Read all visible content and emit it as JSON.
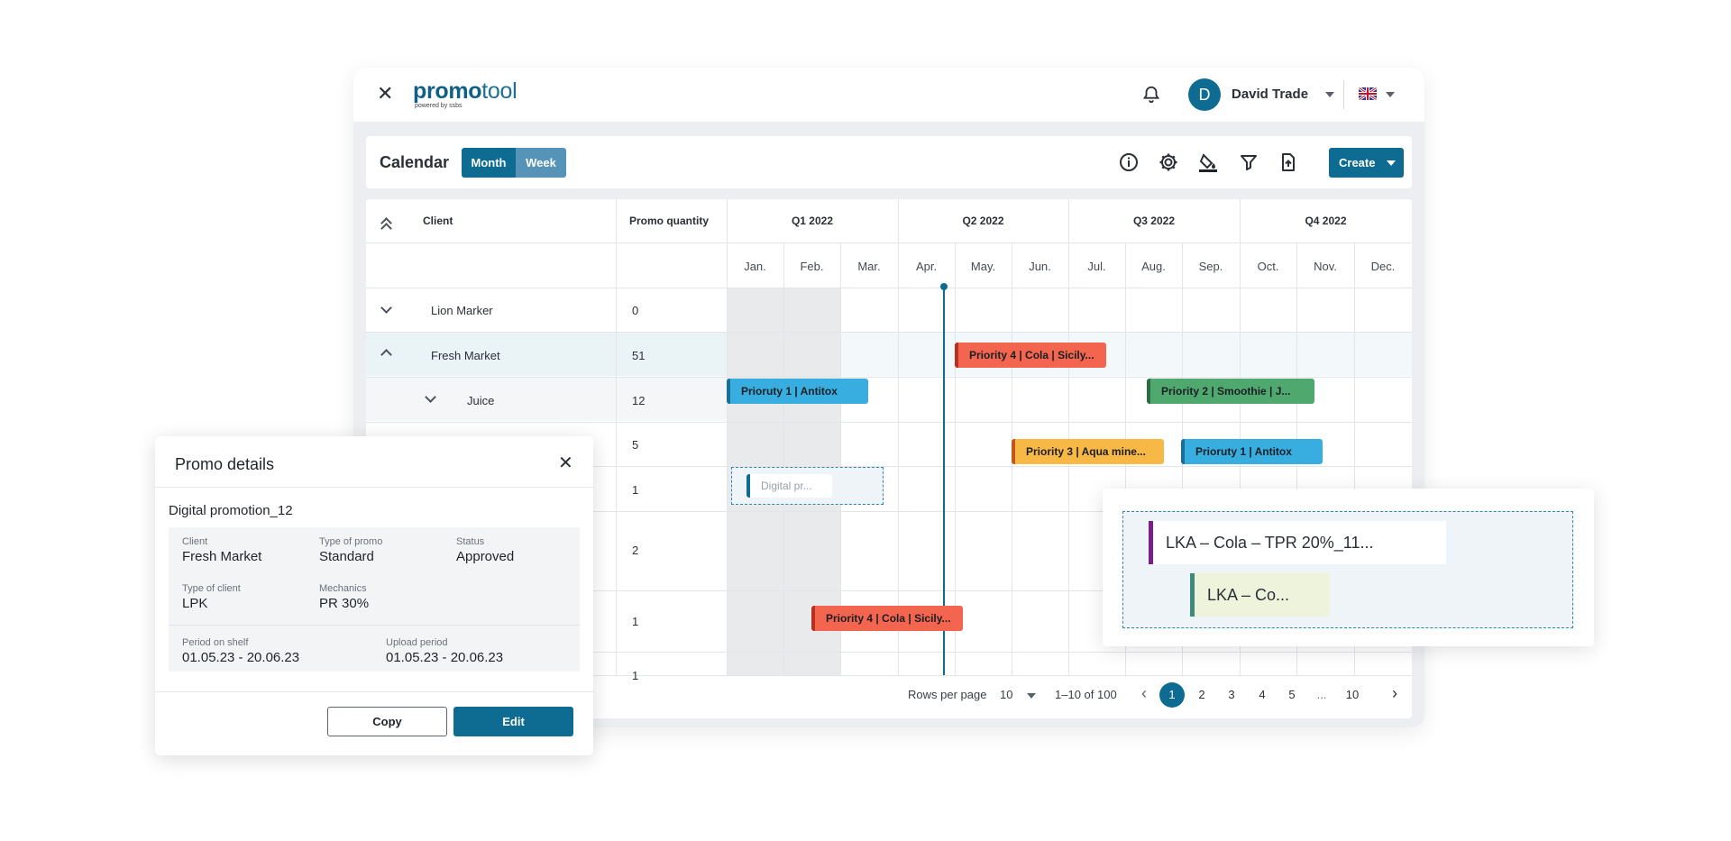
{
  "app": {
    "brand_bold": "promo",
    "brand_light": "tool",
    "brand_sub": "powered by ssbs",
    "user_initial": "D",
    "user_name": "David Trade"
  },
  "calendar": {
    "title": "Calendar",
    "view_month": "Month",
    "view_week": "Week",
    "create_label": "Create",
    "tools": [
      "info-icon",
      "gear-icon",
      "paint-bucket-icon",
      "filter-icon",
      "export-file-icon"
    ]
  },
  "grid": {
    "col_client": "Client",
    "col_qty": "Promo quantity",
    "quarters": [
      "Q1 2022",
      "Q2 2022",
      "Q3 2022",
      "Q4 2022"
    ],
    "months": [
      "Jan.",
      "Feb.",
      "Mar.",
      "Apr.",
      "May.",
      "Jun.",
      "Jul.",
      "Aug.",
      "Sep.",
      "Oct.",
      "Nov.",
      "Dec."
    ],
    "rows": [
      {
        "label": "Lion Marker",
        "qty": "0"
      },
      {
        "label": "Fresh Market",
        "qty": "51"
      },
      {
        "label": "Juice",
        "qty": "12"
      },
      {
        "label": "",
        "qty": "5"
      },
      {
        "label": "",
        "qty": "1"
      },
      {
        "label": "",
        "qty": "2"
      },
      {
        "label": "",
        "qty": "1"
      },
      {
        "label": "",
        "qty": "1"
      }
    ],
    "bars": [
      {
        "label": "Priority 4 | Cola | Sicily...",
        "color": "#f3654f",
        "edge": "#b8301e"
      },
      {
        "label": "Prioruty 1 | Antitox",
        "color": "#37ade0",
        "edge": "#1a6f99"
      },
      {
        "label": "Priority 2 | Smoothie | J...",
        "color": "#4fa86e",
        "edge": "#2a6c44"
      },
      {
        "label": "Priority 3 | Aqua mine...",
        "color": "#f8b846",
        "edge": "#c2571a"
      },
      {
        "label": "Prioruty 1 | Antitox",
        "color": "#37ade0",
        "edge": "#1a6f99"
      },
      {
        "label": "Digital pr...",
        "color": "#ffffff",
        "edge": "#0e6c93"
      },
      {
        "label": "Priority 4 | Cola | Sicily...",
        "color": "#f3654f",
        "edge": "#b8301e"
      }
    ],
    "pagination": {
      "rows_per_page_label": "Rows per page",
      "rows_per_page": "10",
      "range": "1–10 of 100",
      "pages": [
        "1",
        "2",
        "3",
        "4",
        "5",
        "...",
        "10"
      ]
    }
  },
  "promo_details": {
    "title": "Promo details",
    "name": "Digital promotion_12",
    "client_label": "Client",
    "client": "Fresh Market",
    "type_label": "Type of promo",
    "type": "Standard",
    "status_label": "Status",
    "status": "Approved",
    "client_type_label": "Type of client",
    "client_type": "LPK",
    "mechanics_label": "Mechanics",
    "mechanics": "PR 30%",
    "shelf_label": "Period on shelf",
    "shelf": "01.05.23 - 20.06.23",
    "upload_label": "Upload period",
    "upload": "01.05.23 - 20.06.23",
    "copy": "Copy",
    "edit": "Edit"
  },
  "drag_preview": {
    "card1": "LKA – Cola – TPR 20%_11...",
    "card2": "LKA – Co..."
  }
}
